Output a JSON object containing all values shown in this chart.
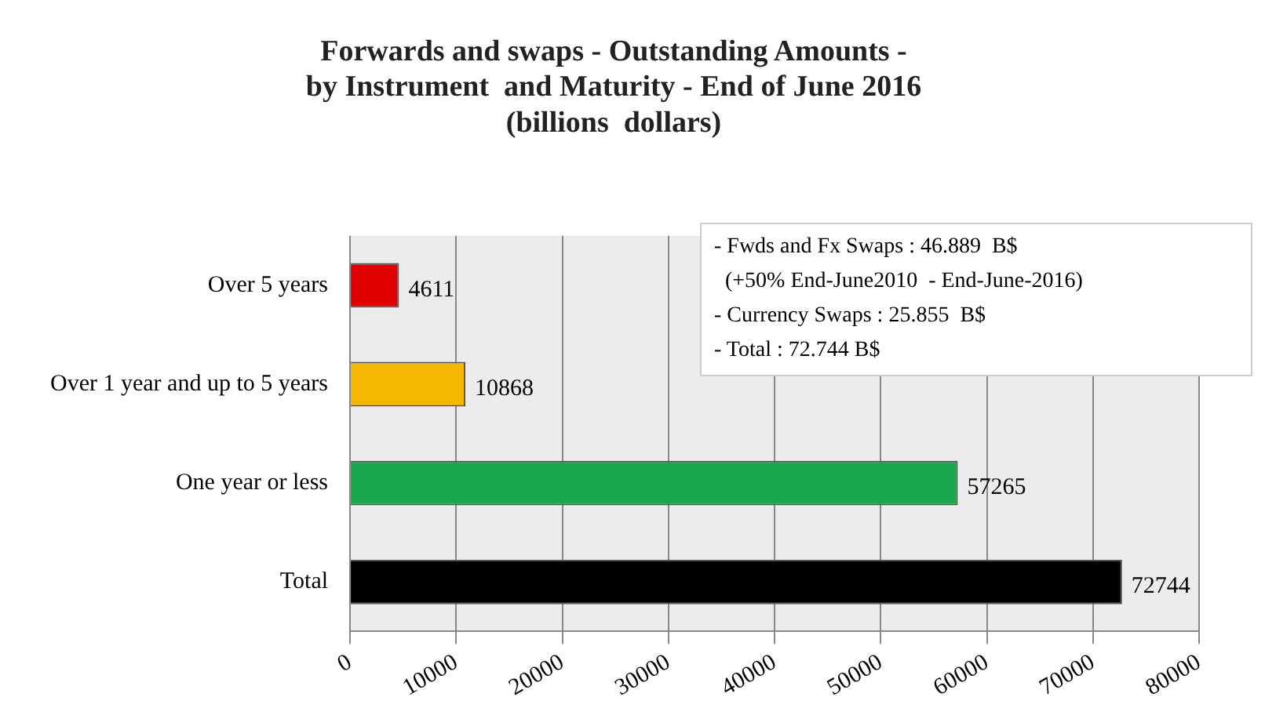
{
  "chart_data": {
    "type": "bar",
    "orientation": "horizontal",
    "title": "Forwards and swaps - Outstanding Amounts -\nby Instrument  and Maturity - End of June 2016\n(billions  dollars)",
    "categories": [
      "Over 5 years",
      "Over 1 year and up to 5 years",
      "One year or less",
      "Total"
    ],
    "values": [
      4611,
      10868,
      57265,
      72744
    ],
    "colors": [
      "#e00000",
      "#f5b800",
      "#1aa84f",
      "#000000"
    ],
    "xlim": [
      0,
      80000
    ],
    "xticks": [
      0,
      10000,
      20000,
      30000,
      40000,
      50000,
      60000,
      70000,
      80000
    ],
    "grid": "x",
    "data_labels": true,
    "legend": false,
    "annotations": [
      "- Fwds and Fx Swaps : 46.889  B$",
      "  (+50% End-June2010  - End-June-2016)",
      "- Currency Swaps : 25.855  B$",
      "- Total : 72.744 B$"
    ]
  }
}
